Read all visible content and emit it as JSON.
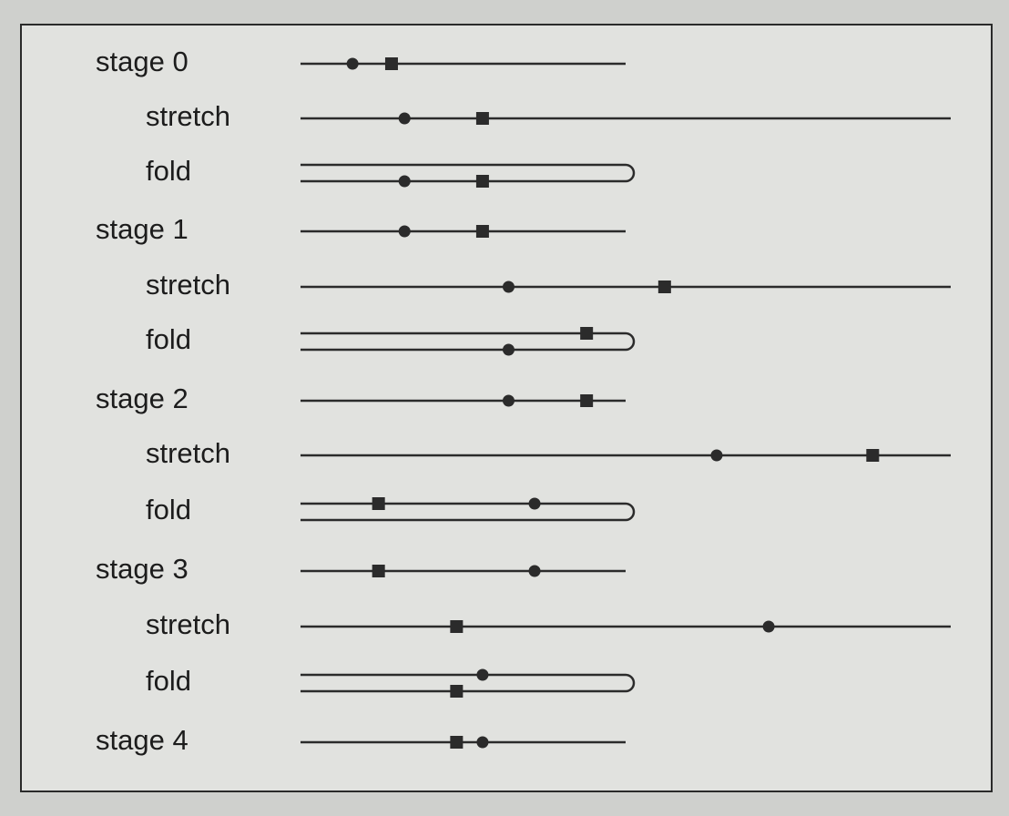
{
  "rows": [
    {
      "label": "stage 0",
      "kind": "stage",
      "circle": 0.16,
      "square": 0.28,
      "end": 1.0
    },
    {
      "label": "stretch",
      "kind": "stretch",
      "circle": 0.16,
      "square": 0.28,
      "end": 2.0
    },
    {
      "label": "fold",
      "kind": "fold",
      "circle": 0.16,
      "square": 0.28,
      "end": 2.0
    },
    {
      "label": "stage 1",
      "kind": "stage",
      "circle": 0.32,
      "square": 0.56,
      "end": 1.0
    },
    {
      "label": "stretch",
      "kind": "stretch",
      "circle": 0.32,
      "square": 0.56,
      "end": 2.0
    },
    {
      "label": "fold",
      "kind": "fold",
      "circle": 0.32,
      "square": 0.56,
      "end": 2.0
    },
    {
      "label": "stage 2",
      "kind": "stage",
      "circle": 0.64,
      "square": 0.88,
      "end": 1.0
    },
    {
      "label": "stretch",
      "kind": "stretch",
      "circle": 0.64,
      "square": 0.88,
      "end": 2.0
    },
    {
      "label": "fold",
      "kind": "fold",
      "circle": 0.64,
      "square": 0.88,
      "end": 2.0
    },
    {
      "label": "stage 3",
      "kind": "stage",
      "circle": 0.72,
      "square": 0.24,
      "end": 1.0
    },
    {
      "label": "stretch",
      "kind": "stretch",
      "circle": 0.72,
      "square": 0.24,
      "end": 2.0
    },
    {
      "label": "fold",
      "kind": "fold",
      "circle": 0.72,
      "square": 0.24,
      "end": 2.0
    },
    {
      "label": "stage 4",
      "kind": "stage",
      "circle": 0.56,
      "square": 0.48,
      "end": 1.0
    }
  ],
  "colors": {
    "line": "#2b2b2b",
    "marker": "#2b2b2b",
    "text": "#1c1c1c"
  }
}
